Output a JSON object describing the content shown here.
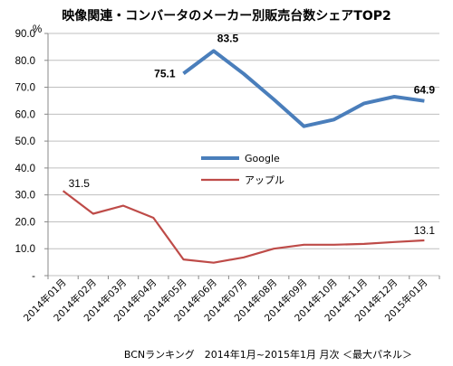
{
  "chart_data": {
    "type": "line",
    "title": "映像関連・コンバータのメーカー別販売台数シェアTOP2",
    "unit_label": "%",
    "categories": [
      "2014年01月",
      "2014年02月",
      "2014年03月",
      "2014年04月",
      "2014年05月",
      "2014年06月",
      "2014年07月",
      "2014年08月",
      "2014年09月",
      "2014年10月",
      "2014年11月",
      "2014年12月",
      "2015年01月"
    ],
    "ylim": [
      0,
      90
    ],
    "y_ticks": [
      "90.0",
      "80.0",
      "70.0",
      "60.0",
      "50.0",
      "40.0",
      "30.0",
      "20.0",
      "10.0",
      "-"
    ],
    "grid": true,
    "series": [
      {
        "name": "Google",
        "color": "#4a7ebb",
        "values": [
          null,
          null,
          null,
          null,
          75.1,
          83.5,
          75.0,
          65.5,
          55.5,
          58.0,
          64.0,
          66.5,
          64.9
        ]
      },
      {
        "name": "アップル",
        "color": "#be4b48",
        "values": [
          31.5,
          23.0,
          26.0,
          21.5,
          6.0,
          4.8,
          6.8,
          10.0,
          11.5,
          11.5,
          11.8,
          12.5,
          13.1
        ]
      }
    ],
    "data_labels": [
      {
        "series": 0,
        "index": 4,
        "text": "75.1"
      },
      {
        "series": 0,
        "index": 5,
        "text": "83.5"
      },
      {
        "series": 0,
        "index": 12,
        "text": "64.9"
      },
      {
        "series": 1,
        "index": 0,
        "text": "31.5"
      },
      {
        "series": 1,
        "index": 12,
        "text": "13.1"
      }
    ],
    "legend_position": "center"
  },
  "footer": "BCNランキング　2014年1月~2015年1月 月次 ＜最大パネル＞"
}
